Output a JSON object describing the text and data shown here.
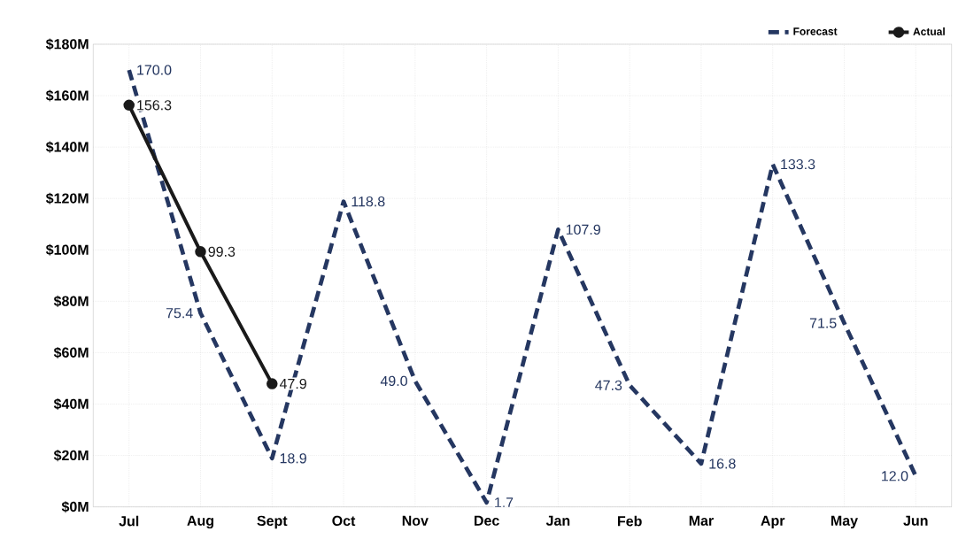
{
  "chart_data": {
    "type": "line",
    "categories": [
      "Jul",
      "Aug",
      "Sept",
      "Oct",
      "Nov",
      "Dec",
      "Jan",
      "Feb",
      "Mar",
      "Apr",
      "May",
      "Jun"
    ],
    "series": [
      {
        "name": "Forecast",
        "color": "#253761",
        "line_style": "dashed",
        "marker": "none",
        "values": [
          170.0,
          75.4,
          18.9,
          118.8,
          49.0,
          1.7,
          107.9,
          47.3,
          16.8,
          133.3,
          71.5,
          12.0
        ],
        "value_labels": [
          "170.0",
          "75.4",
          "18.9",
          "118.8",
          "49.0",
          "1.7",
          "107.9",
          "47.3",
          "16.8",
          "133.3",
          "71.5",
          "12.0"
        ]
      },
      {
        "name": "Actual",
        "color": "#1a1a1a",
        "line_style": "solid",
        "marker": "circle",
        "values": [
          156.3,
          99.3,
          47.9,
          null,
          null,
          null,
          null,
          null,
          null,
          null,
          null,
          null
        ],
        "value_labels": [
          "156.3",
          "99.3",
          "47.9",
          null,
          null,
          null,
          null,
          null,
          null,
          null,
          null,
          null
        ]
      }
    ],
    "ylim": [
      0,
      180
    ],
    "yticks": [
      {
        "value": 0,
        "label": "$0M"
      },
      {
        "value": 20,
        "label": "$20M"
      },
      {
        "value": 40,
        "label": "$40M"
      },
      {
        "value": 60,
        "label": "$60M"
      },
      {
        "value": 80,
        "label": "$80M"
      },
      {
        "value": 100,
        "label": "$100M"
      },
      {
        "value": 120,
        "label": "$120M"
      },
      {
        "value": 140,
        "label": "$140M"
      },
      {
        "value": 160,
        "label": "$160M"
      },
      {
        "value": 180,
        "label": "$180M"
      }
    ],
    "grid": true,
    "legend": "top right"
  }
}
